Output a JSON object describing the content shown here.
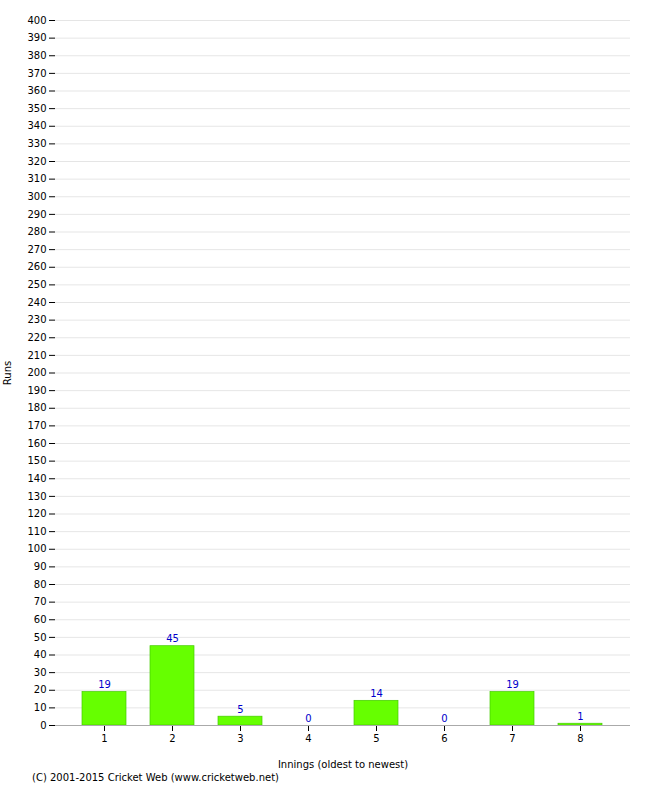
{
  "chart_data": {
    "type": "bar",
    "categories": [
      1,
      2,
      3,
      4,
      5,
      6,
      7,
      8
    ],
    "values": [
      19,
      45,
      5,
      0,
      14,
      0,
      19,
      1
    ],
    "color": "#66ff00",
    "xlabel": "Innings (oldest to newest)",
    "ylabel": "Runs",
    "ylim": [
      0,
      400
    ],
    "yticks": [
      0,
      10,
      20,
      30,
      40,
      50,
      60,
      70,
      80,
      90,
      100,
      110,
      120,
      130,
      140,
      150,
      160,
      170,
      180,
      190,
      200,
      210,
      220,
      230,
      240,
      250,
      260,
      270,
      280,
      290,
      300,
      310,
      320,
      330,
      340,
      350,
      360,
      370,
      380,
      390,
      400
    ],
    "grid": true,
    "data_labels": true,
    "annotations": [
      "(C) 2001-2015 Cricket Web (www.cricketweb.net)"
    ]
  }
}
